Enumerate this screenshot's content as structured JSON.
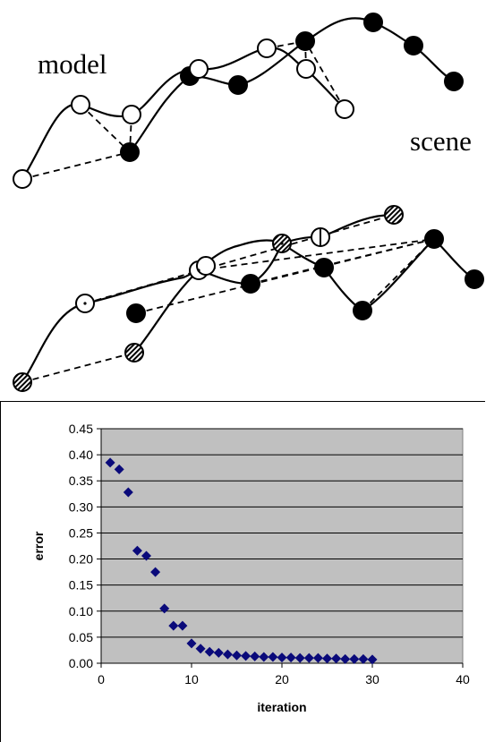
{
  "top_diagram": {
    "model_label": "model",
    "scene_label": "scene"
  },
  "chart_data": {
    "type": "scatter",
    "xlabel": "iteration",
    "ylabel": "error",
    "xlim": [
      0,
      40
    ],
    "ylim": [
      0,
      0.45
    ],
    "x_ticks": [
      "0",
      "10",
      "20",
      "30",
      "40"
    ],
    "y_ticks": [
      "0.00",
      "0.05",
      "0.10",
      "0.15",
      "0.20",
      "0.25",
      "0.30",
      "0.35",
      "0.40",
      "0.45"
    ],
    "grid": "horizontal",
    "marker": "diamond",
    "colors": {
      "marker": "#0a0a7a",
      "plot_bg": "#c0c0c0"
    },
    "x": [
      1,
      2,
      3,
      4,
      5,
      6,
      7,
      8,
      9,
      10,
      11,
      12,
      13,
      14,
      15,
      16,
      17,
      18,
      19,
      20,
      21,
      22,
      23,
      24,
      25,
      26,
      27,
      28,
      29,
      30
    ],
    "y": [
      0.385,
      0.372,
      0.328,
      0.216,
      0.206,
      0.175,
      0.105,
      0.072,
      0.072,
      0.038,
      0.028,
      0.022,
      0.02,
      0.017,
      0.015,
      0.014,
      0.013,
      0.012,
      0.012,
      0.011,
      0.011,
      0.01,
      0.01,
      0.01,
      0.009,
      0.009,
      0.008,
      0.008,
      0.008,
      0.007
    ]
  }
}
